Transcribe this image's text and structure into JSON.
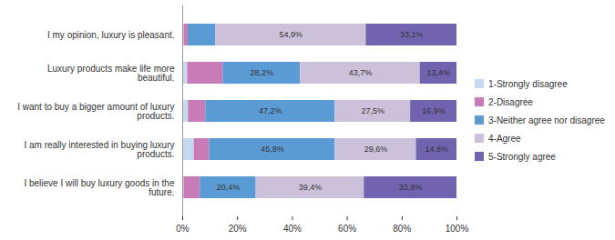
{
  "chart_data": {
    "type": "bar",
    "orientation": "horizontal",
    "stacked": true,
    "data_labels": true,
    "grid": false,
    "legend": "right",
    "categories": [
      "I my opinion, luxury is pleasant.",
      "Luxury products make life more beautiful.",
      "I want to buy a bigger amount of luxury products.",
      "I am really interested in buying luxury products.",
      "I believe I will buy luxury goods in the future."
    ],
    "series": [
      {
        "name": "1-Strongly disagree",
        "color": "#c6d9f0",
        "values": [
          0.5,
          1.8,
          2.1,
          4.2,
          0.5
        ],
        "value_labels": [
          null,
          null,
          null,
          null,
          null
        ]
      },
      {
        "name": "2-Disagree",
        "color": "#c97bb8",
        "values": [
          1.5,
          12.9,
          6.3,
          5.6,
          5.9
        ],
        "value_labels": [
          null,
          null,
          null,
          null,
          null
        ]
      },
      {
        "name": "3-Neither agree nor disagree",
        "color": "#5b9bd5",
        "values": [
          10.0,
          28.2,
          47.2,
          45.8,
          20.4
        ],
        "value_labels": [
          null,
          "28,2%",
          "47,2%",
          "45,8%",
          "20,4%"
        ]
      },
      {
        "name": "4-Agree",
        "color": "#ccc1da",
        "values": [
          54.9,
          43.7,
          27.5,
          29.6,
          39.4
        ],
        "value_labels": [
          "54,9%",
          "43,7%",
          "27,5%",
          "29,6%",
          "39,4%"
        ]
      },
      {
        "name": "5-Strongly agree",
        "color": "#7163b0",
        "values": [
          33.1,
          13.4,
          16.9,
          14.8,
          33.8
        ],
        "value_labels": [
          "33,1%",
          "13,4%",
          "16,9%",
          "14,8%",
          "33,8%"
        ]
      }
    ],
    "xlim": [
      0,
      100
    ],
    "xticks": [
      {
        "value": 0,
        "label": "0%"
      },
      {
        "value": 20,
        "label": "20%"
      },
      {
        "value": 40,
        "label": "40%"
      },
      {
        "value": 60,
        "label": "60%"
      },
      {
        "value": 80,
        "label": "80%"
      },
      {
        "value": 100,
        "label": "100%"
      }
    ]
  }
}
